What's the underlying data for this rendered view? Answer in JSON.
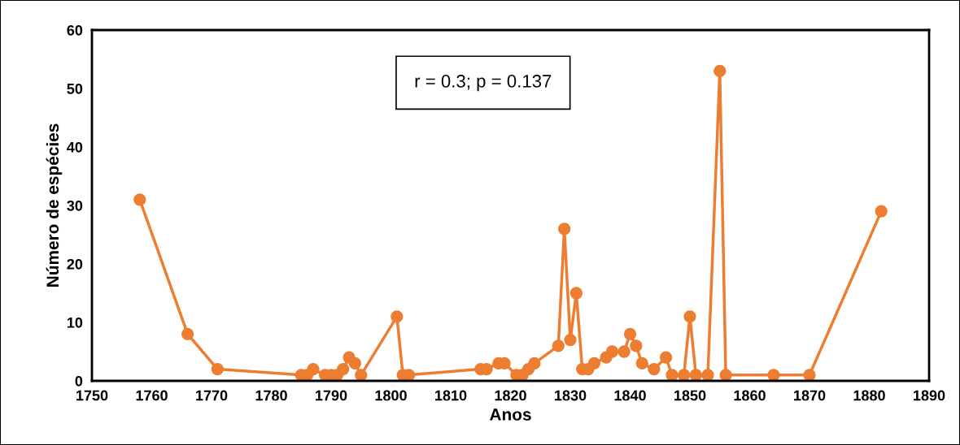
{
  "chart_data": {
    "type": "line",
    "xlabel": "Anos",
    "ylabel": "Número de espécies",
    "annotations": [
      "r = 0.3; p = 0.137"
    ],
    "x": [
      1758,
      1766,
      1771,
      1785,
      1786,
      1787,
      1789,
      1790,
      1791,
      1792,
      1793,
      1794,
      1795,
      1801,
      1802,
      1803,
      1815,
      1816,
      1818,
      1819,
      1821,
      1822,
      1823,
      1824,
      1828,
      1829,
      1830,
      1831,
      1832,
      1833,
      1834,
      1836,
      1837,
      1839,
      1840,
      1841,
      1842,
      1844,
      1846,
      1847,
      1849,
      1850,
      1851,
      1853,
      1855,
      1856,
      1864,
      1870,
      1882
    ],
    "series": [
      {
        "color": "#ed7d31",
        "values": [
          31,
          8,
          2,
          1,
          1,
          2,
          1,
          1,
          1,
          2,
          4,
          3,
          1,
          11,
          1,
          1,
          2,
          2,
          3,
          3,
          1,
          1,
          2,
          3,
          6,
          26,
          7,
          15,
          2,
          2,
          3,
          4,
          5,
          5,
          8,
          6,
          3,
          2,
          4,
          1,
          1,
          11,
          1,
          1,
          53,
          1,
          1,
          1,
          29
        ]
      }
    ],
    "xlim": [
      1750,
      1890
    ],
    "xticks": [
      1750,
      1760,
      1770,
      1780,
      1790,
      1800,
      1810,
      1820,
      1830,
      1840,
      1850,
      1860,
      1870,
      1880,
      1890
    ],
    "ylim": [
      0,
      60
    ],
    "yticks": [
      0,
      10,
      20,
      30,
      40,
      50,
      60
    ],
    "marker": "circle",
    "line_style": "solid",
    "grid": false,
    "legend": false
  }
}
